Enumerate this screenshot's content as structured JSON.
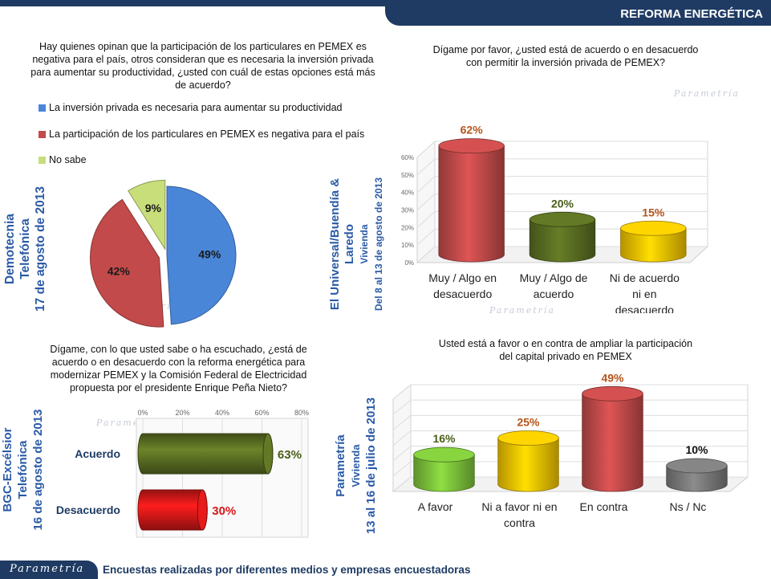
{
  "header": {
    "title": "REFORMA ENERGÉTICA"
  },
  "footer": {
    "logo": "Parametría",
    "text": "Encuestas realizadas por diferentes medios y empresas encuestadoras"
  },
  "watermark": "Parametría",
  "colors": {
    "navy": "#1f3b63",
    "blue": "#4a86d8",
    "red": "#c24a4a",
    "green": "#5a6e22",
    "yellow": "#f2c200",
    "gray": "#7a7a7a",
    "bright_red": "#d41818",
    "orange_label": "#b5541a",
    "green_label": "#4a5e1a"
  },
  "panels": {
    "pie": {
      "question": "Hay quienes opinan que la participación de los particulares en PEMEX es negativa para el país, otros consideran que es necesaria la inversión privada para aumentar su productividad, ¿usted con cuál de estas opciones está más de acuerdo?",
      "source_lines": [
        "Demotecnia",
        "Telefónica",
        "17 de agosto de 2013"
      ]
    },
    "bar1": {
      "question": "Dígame por favor, ¿usted está de acuerdo o en desacuerdo con permitir la inversión privada de PEMEX?",
      "source_lines": [
        "El Universal/Buendía &",
        "Laredo",
        "Vivienda",
        "Del 8 al 13 de agosto de 2013"
      ]
    },
    "hbar": {
      "question": "Dígame, con lo que usted sabe o ha escuchado, ¿está de acuerdo o en desacuerdo con la reforma energética para modernizar PEMEX y la Comisión Federal de Electricidad propuesta por el presidente Enrique Peña Nieto?",
      "source_lines": [
        "BGC-Excélsior",
        "Telefónica",
        "16 de agosto de 2013"
      ]
    },
    "bar2": {
      "question": "Usted está a favor o en contra de ampliar la participación del capital privado en PEMEX",
      "source_lines": [
        "Parametría",
        "Vivienda",
        "13 al 16 de julio de 2013"
      ]
    }
  },
  "chart_data": [
    {
      "type": "pie",
      "title": "Hay quienes opinan que la participación de los particulares en PEMEX es negativa para el país, otros consideran que es necesaria la inversión privada para aumentar su productividad, ¿usted con cuál de estas opciones está más de acuerdo?",
      "categories": [
        "La inversión privada es necesaria para aumentar su productividad",
        "La participación de los particulares en PEMEX es negativa para el país",
        "No sabe"
      ],
      "values": [
        49,
        42,
        9
      ],
      "labels": [
        "49%",
        "42%",
        "9%"
      ],
      "colors": [
        "#4a86d8",
        "#c24a4a",
        "#c8de7a"
      ]
    },
    {
      "type": "bar",
      "title": "Dígame por favor, ¿usted está de acuerdo o en desacuerdo con permitir la inversión privada de PEMEX?",
      "categories": [
        "Muy / Algo en desacuerdo",
        "Muy / Algo de acuerdo",
        "Ni de acuerdo ni en desacuerdo"
      ],
      "values": [
        62,
        20,
        15
      ],
      "labels": [
        "62%",
        "20%",
        "15%"
      ],
      "yticks": [
        "0%",
        "10%",
        "20%",
        "30%",
        "40%",
        "50%",
        "60%"
      ],
      "ylim": [
        0,
        60
      ],
      "colors": [
        "#c24a4a",
        "#5a6e22",
        "#f2c200"
      ],
      "label_colors": [
        "#b5541a",
        "#4a5e1a",
        "#b5541a"
      ]
    },
    {
      "type": "bar",
      "orientation": "horizontal",
      "title": "Dígame, con lo que usted sabe o ha escuchado, ¿está de acuerdo o en desacuerdo con la reforma energética para modernizar PEMEX y la Comisión Federal de Electricidad propuesta por el presidente Enrique Peña Nieto?",
      "categories": [
        "Acuerdo",
        "Desacuerdo"
      ],
      "values": [
        63,
        30
      ],
      "labels": [
        "63%",
        "30%"
      ],
      "xticks": [
        "0%",
        "20%",
        "40%",
        "60%",
        "80%"
      ],
      "xlim": [
        0,
        80
      ],
      "colors": [
        "#5a6e22",
        "#d41818"
      ],
      "label_colors": [
        "#4a5e1a",
        "#d41818"
      ]
    },
    {
      "type": "bar",
      "title": "Usted está a favor o en contra de ampliar la participación del capital privado en PEMEX",
      "categories": [
        "A favor",
        "Ni a favor ni en contra",
        "En contra",
        "Ns / Nc"
      ],
      "values": [
        16,
        25,
        49,
        10
      ],
      "labels": [
        "16%",
        "25%",
        "49%",
        "10%"
      ],
      "ylim": [
        0,
        50
      ],
      "colors": [
        "#7cc23a",
        "#f2c200",
        "#c24a4a",
        "#7a7a7a"
      ],
      "label_colors": [
        "#4a5e1a",
        "#b5541a",
        "#b5541a",
        "#111111"
      ]
    }
  ]
}
